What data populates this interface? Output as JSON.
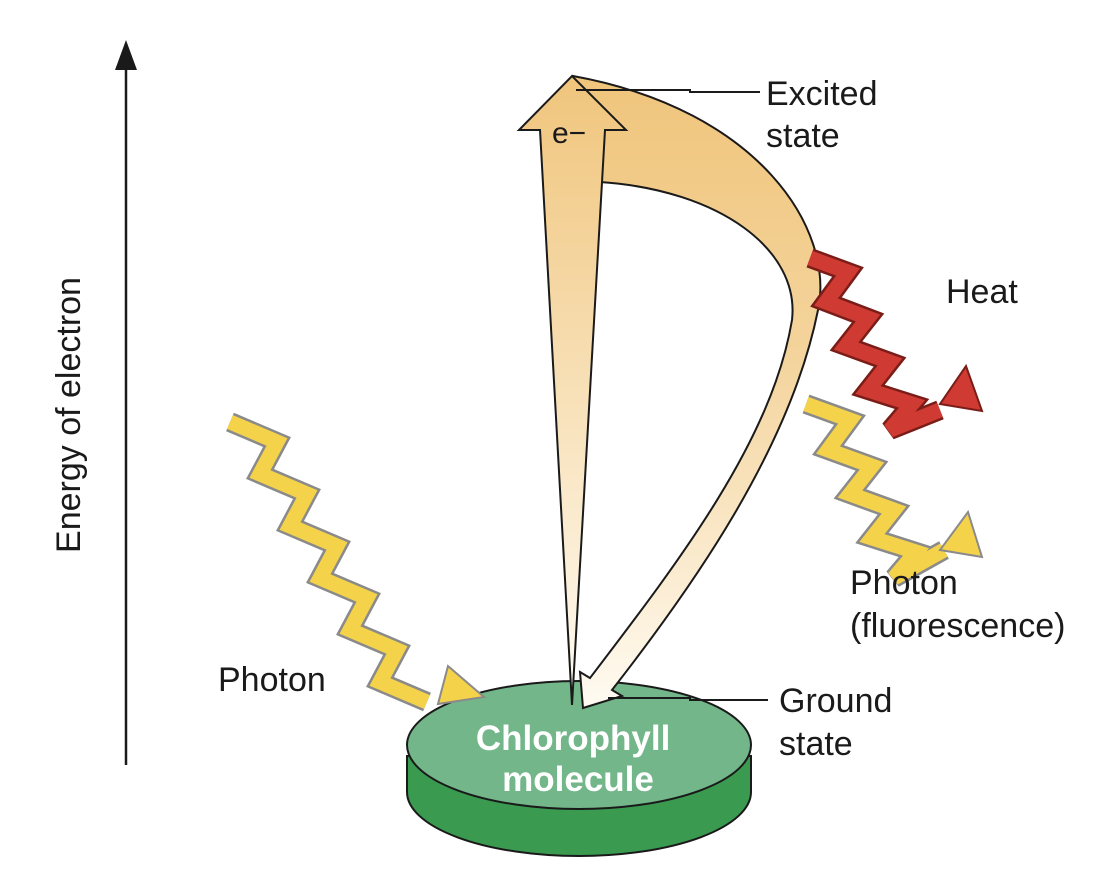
{
  "axis": {
    "label": "Energy of electron"
  },
  "labels": {
    "electron": "e−",
    "excited_line1": "Excited",
    "excited_line2": "state",
    "heat": "Heat",
    "photon_in": "Photon",
    "fluor_line1": "Photon",
    "fluor_line2": "(fluorescence)",
    "ground_line1": "Ground",
    "ground_line2": "state",
    "molecule_line1": "Chlorophyll",
    "molecule_line2": "molecule"
  },
  "colors": {
    "disk_top": "#72b68a",
    "disk_side": "#3a9a4f",
    "photon_yellow": "#f4d24a",
    "heat_red": "#cf3a32",
    "arrow_tan": "#f1c883",
    "arrow_light": "#fffaf0"
  }
}
